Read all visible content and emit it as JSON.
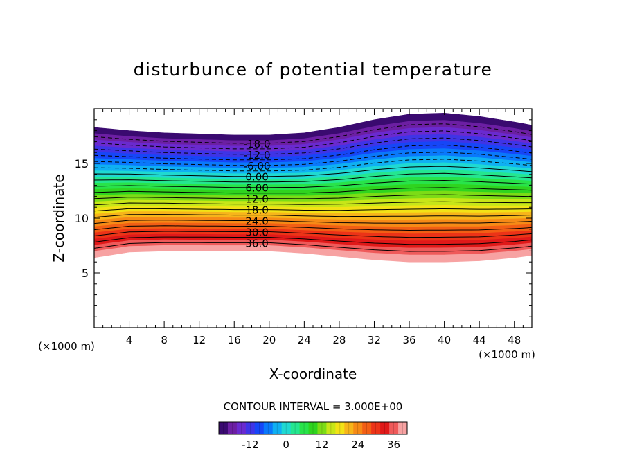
{
  "chart_data": {
    "type": "contour",
    "title": "disturbunce of potential temperature",
    "xlabel": "X-coordinate",
    "ylabel": "Z-coordinate",
    "x_unit_left": "(×1000 m)",
    "x_unit_right": "(×1000 m)",
    "xlim": [
      0,
      50
    ],
    "ylim": [
      0,
      20
    ],
    "x_ticks": [
      "4",
      "8",
      "12",
      "16",
      "20",
      "24",
      "28",
      "32",
      "36",
      "40",
      "44",
      "48"
    ],
    "y_ticks": [
      "5",
      "10",
      "15"
    ],
    "contour_interval_label": "CONTOUR INTERVAL = 3.000E+00",
    "contour_interval": 3,
    "levels": [
      -21,
      -18,
      -15,
      -12,
      -9,
      -6,
      -3,
      0,
      3,
      6,
      9,
      12,
      15,
      18,
      21,
      24,
      27,
      30,
      33,
      36,
      39
    ],
    "contour_labels": [
      "-18.0",
      "-12.0",
      "-6.00",
      "0.00",
      "6.00",
      "12.0",
      "18.0",
      "24.0",
      "30.0",
      "36.0"
    ],
    "colorbar_ticks": [
      "-12",
      "0",
      "12",
      "24",
      "36"
    ],
    "field_extent": {
      "x": [
        0,
        4,
        8,
        12,
        16,
        20,
        24,
        28,
        32,
        36,
        40,
        44,
        48,
        50
      ],
      "bottom_z": [
        6.4,
        6.9,
        7.0,
        7.0,
        7.0,
        7.0,
        6.8,
        6.5,
        6.2,
        6.0,
        6.0,
        6.1,
        6.4,
        6.6
      ],
      "top_z": [
        18.3,
        18.0,
        17.8,
        17.7,
        17.6,
        17.6,
        17.8,
        18.3,
        19.0,
        19.5,
        19.6,
        19.3,
        18.8,
        18.5
      ]
    },
    "colormap": [
      "#3a0a70",
      "#6c1fa3",
      "#6a2acf",
      "#3f34e6",
      "#1646f7",
      "#0a78fb",
      "#0fb0f2",
      "#1fd9d2",
      "#24e690",
      "#28e34a",
      "#2fd41f",
      "#7cdc16",
      "#c7e618",
      "#f2e216",
      "#f7b51a",
      "#f68a16",
      "#f25e14",
      "#ec3317",
      "#e01919",
      "#ef5a5a",
      "#f7a2a2"
    ],
    "grid": false,
    "legend": "colorbar-bottom"
  }
}
